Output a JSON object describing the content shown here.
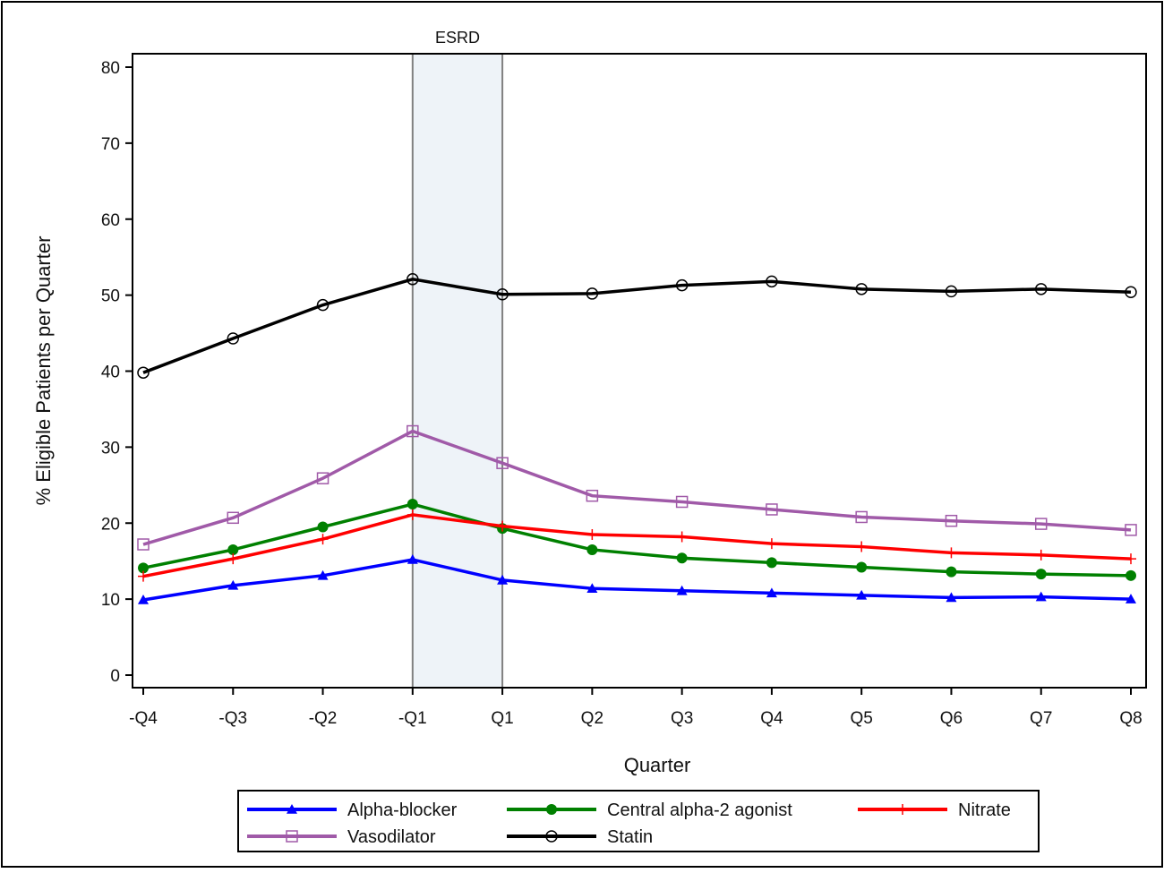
{
  "chart_data": {
    "type": "line",
    "xlabel": "Quarter",
    "ylabel": "% Eligible Patients per Quarter",
    "categories": [
      "-Q4",
      "-Q3",
      "-Q2",
      "-Q1",
      "Q1",
      "Q2",
      "Q3",
      "Q4",
      "Q5",
      "Q6",
      "Q7",
      "Q8"
    ],
    "ylim": [
      0,
      80
    ],
    "yticks": [
      0,
      10,
      20,
      30,
      40,
      50,
      60,
      70,
      80
    ],
    "grid": false,
    "legend_position": "bottom",
    "annotation": {
      "label": "ESRD",
      "from_category": "-Q1",
      "to_category": "Q1",
      "shade_color": "#eef3f8",
      "line_color": "#808080"
    },
    "series": [
      {
        "name": "Alpha-blocker",
        "color": "#0000ff",
        "marker": "triangle-filled",
        "values": [
          9.9,
          11.8,
          13.1,
          15.2,
          12.5,
          11.4,
          11.1,
          10.8,
          10.5,
          10.2,
          10.3,
          10.0
        ]
      },
      {
        "name": "Central alpha-2 agonist",
        "color": "#008000",
        "marker": "circle-filled",
        "values": [
          14.1,
          16.5,
          19.5,
          22.5,
          19.3,
          16.5,
          15.4,
          14.8,
          14.2,
          13.6,
          13.3,
          13.1
        ]
      },
      {
        "name": "Nitrate",
        "color": "#ff0000",
        "marker": "plus",
        "values": [
          13.0,
          15.3,
          17.9,
          21.1,
          19.6,
          18.5,
          18.2,
          17.3,
          16.9,
          16.1,
          15.8,
          15.3
        ]
      },
      {
        "name": "Vasodilator",
        "color": "#a05aa8",
        "marker": "square-open",
        "values": [
          17.2,
          20.7,
          25.9,
          32.1,
          27.9,
          23.6,
          22.8,
          21.8,
          20.8,
          20.3,
          19.9,
          19.1
        ]
      },
      {
        "name": "Statin",
        "color": "#000000",
        "marker": "circle-open",
        "values": [
          39.8,
          44.3,
          48.7,
          52.1,
          50.1,
          50.2,
          51.3,
          51.8,
          50.8,
          50.5,
          50.8,
          50.4
        ]
      }
    ]
  }
}
